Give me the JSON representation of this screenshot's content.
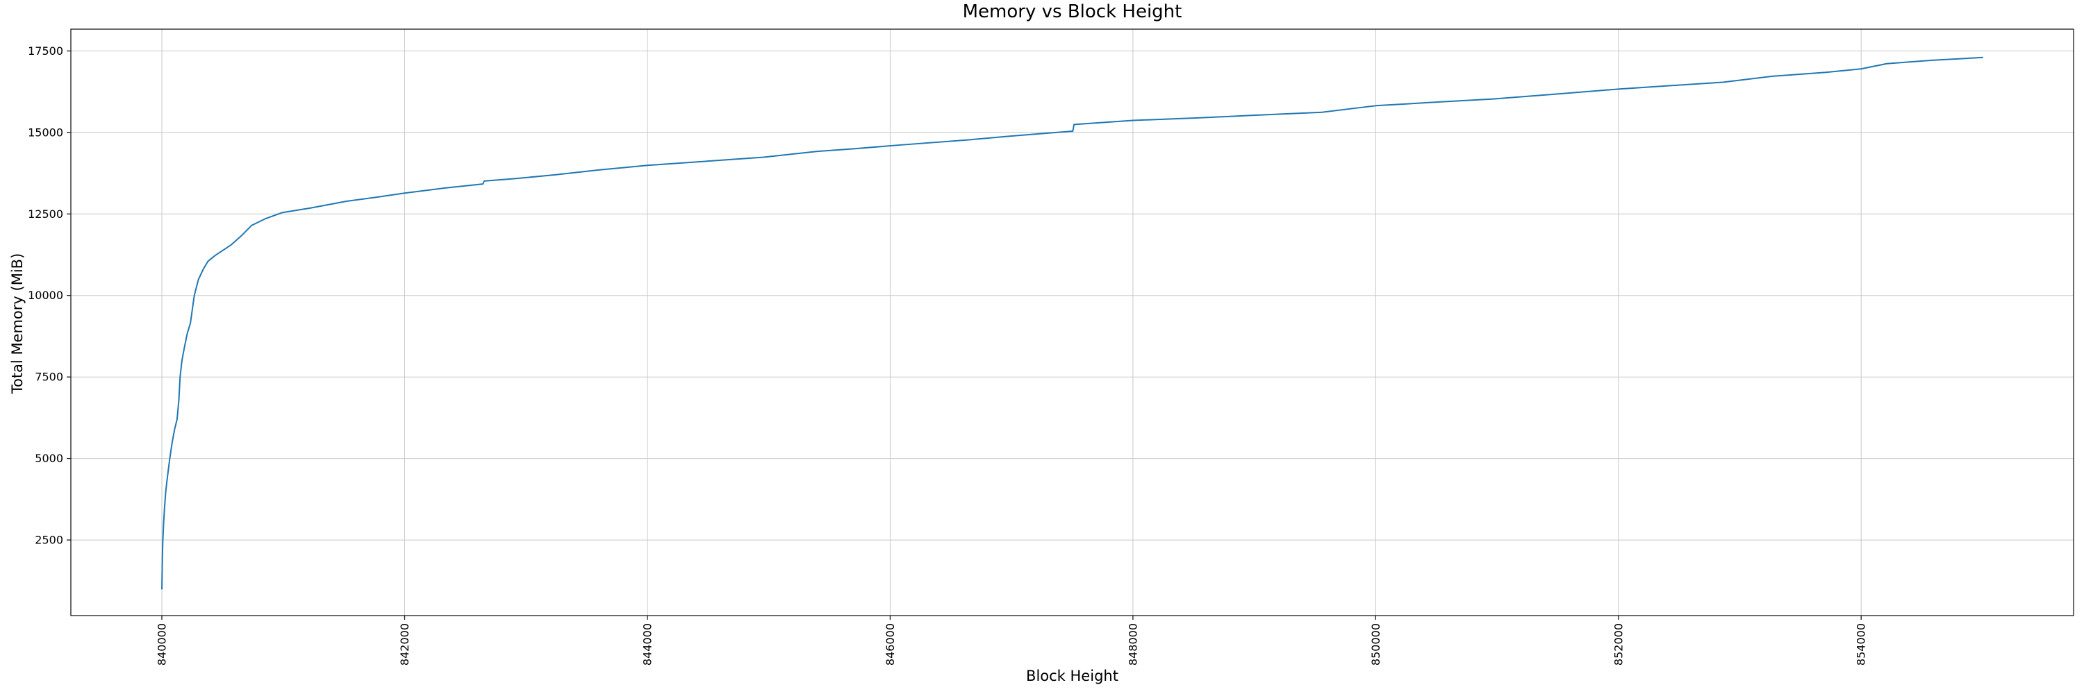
{
  "chart_data": {
    "type": "line",
    "title": "Memory vs Block Height",
    "xlabel": "Block Height",
    "ylabel": "Total Memory (MiB)",
    "grid": true,
    "legend": "none",
    "xlim": [
      839250,
      855750
    ],
    "ylim": [
      182,
      18168
    ],
    "x_ticks": [
      840000,
      842000,
      844000,
      846000,
      848000,
      850000,
      852000,
      854000
    ],
    "x_tick_labels": [
      "840000",
      "842000",
      "844000",
      "846000",
      "848000",
      "850000",
      "852000",
      "854000"
    ],
    "x_tick_rotation_deg": 90,
    "y_ticks": [
      2500,
      5000,
      7500,
      10000,
      12500,
      15000,
      17500
    ],
    "y_tick_labels": [
      "2500",
      "5000",
      "7500",
      "10000",
      "12500",
      "15000",
      "17500"
    ],
    "series": [
      {
        "name": "Total Memory",
        "color": "#1f77b4",
        "points": [
          [
            840000,
            1000
          ],
          [
            840004,
            2000
          ],
          [
            840008,
            2500
          ],
          [
            840014,
            3000
          ],
          [
            840022,
            3500
          ],
          [
            840032,
            4000
          ],
          [
            840048,
            4500
          ],
          [
            840065,
            5000
          ],
          [
            840085,
            5500
          ],
          [
            840105,
            5900
          ],
          [
            840125,
            6200
          ],
          [
            840140,
            6800
          ],
          [
            840150,
            7500
          ],
          [
            840165,
            8000
          ],
          [
            840185,
            8400
          ],
          [
            840210,
            8850
          ],
          [
            840235,
            9150
          ],
          [
            840267,
            10000
          ],
          [
            840300,
            10480
          ],
          [
            840340,
            10800
          ],
          [
            840380,
            11050
          ],
          [
            840440,
            11230
          ],
          [
            840570,
            11550
          ],
          [
            840660,
            11850
          ],
          [
            840740,
            12150
          ],
          [
            840850,
            12350
          ],
          [
            840990,
            12540
          ],
          [
            841220,
            12680
          ],
          [
            841520,
            12890
          ],
          [
            841760,
            13010
          ],
          [
            842000,
            13140
          ],
          [
            842320,
            13290
          ],
          [
            842645,
            13420
          ],
          [
            842655,
            13510
          ],
          [
            842900,
            13580
          ],
          [
            843240,
            13700
          ],
          [
            843600,
            13850
          ],
          [
            844000,
            13990
          ],
          [
            844500,
            14120
          ],
          [
            844960,
            14240
          ],
          [
            845400,
            14420
          ],
          [
            845700,
            14500
          ],
          [
            846100,
            14620
          ],
          [
            846670,
            14780
          ],
          [
            847000,
            14890
          ],
          [
            847505,
            15040
          ],
          [
            847515,
            15245
          ],
          [
            848000,
            15370
          ],
          [
            848500,
            15440
          ],
          [
            848960,
            15520
          ],
          [
            849560,
            15620
          ],
          [
            850000,
            15820
          ],
          [
            850500,
            15930
          ],
          [
            850980,
            16030
          ],
          [
            851500,
            16180
          ],
          [
            852000,
            16330
          ],
          [
            852450,
            16440
          ],
          [
            852860,
            16540
          ],
          [
            853260,
            16720
          ],
          [
            853700,
            16840
          ],
          [
            854000,
            16950
          ],
          [
            854210,
            17110
          ],
          [
            854590,
            17215
          ],
          [
            854820,
            17260
          ],
          [
            855000,
            17300
          ]
        ]
      }
    ]
  },
  "colors": {
    "line": "#1f77b4",
    "grid": "#c8c8c8",
    "spine": "#1a1a1a",
    "tick": "#1a1a1a",
    "background": "#ffffff",
    "text": "#000000"
  }
}
